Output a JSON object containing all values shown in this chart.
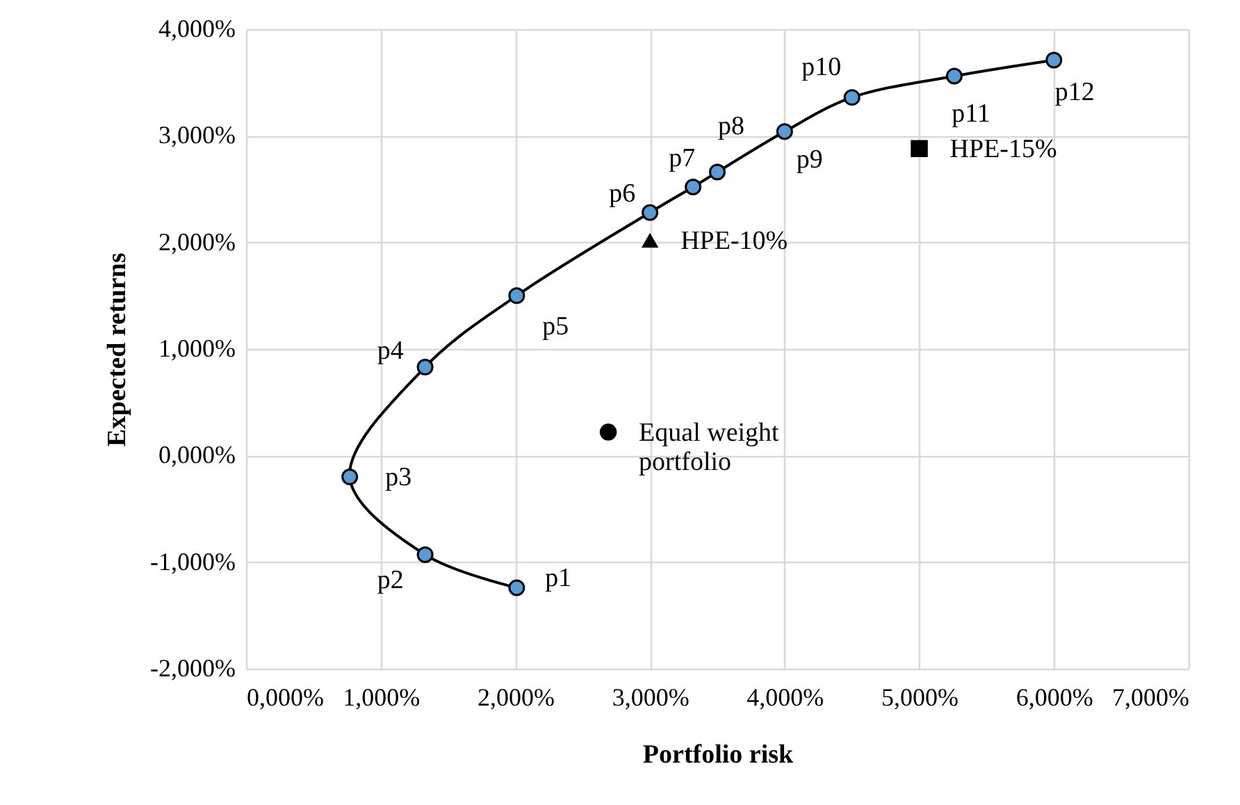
{
  "chart_data": {
    "type": "scatter",
    "xlabel": "Portfolio risk",
    "ylabel": "Expected returns",
    "xlim": [
      0,
      7
    ],
    "ylim": [
      -2,
      4
    ],
    "xticks": [
      {
        "value": 0,
        "label": "0,000%"
      },
      {
        "value": 1,
        "label": "1,000%"
      },
      {
        "value": 2,
        "label": "2,000%"
      },
      {
        "value": 3,
        "label": "3,000%"
      },
      {
        "value": 4,
        "label": "4,000%"
      },
      {
        "value": 5,
        "label": "5,000%"
      },
      {
        "value": 6,
        "label": "6,000%"
      },
      {
        "value": 7,
        "label": "7,000%"
      }
    ],
    "yticks": [
      {
        "value": -2,
        "label": "-2,000%"
      },
      {
        "value": -1,
        "label": "-1,000%"
      },
      {
        "value": 0,
        "label": "0,000%"
      },
      {
        "value": 1,
        "label": "1,000%"
      },
      {
        "value": 2,
        "label": "2,000%"
      },
      {
        "value": 3,
        "label": "3,000%"
      },
      {
        "value": 4,
        "label": "4,000%"
      }
    ],
    "grid": true,
    "series": [
      {
        "type": "line",
        "color": "#000000",
        "marker": "none",
        "x": [
          2.01,
          1.33,
          0.77,
          1.33,
          2.01,
          3.0,
          3.32,
          3.5,
          4.0,
          4.5,
          5.26,
          6.0
        ],
        "values": [
          -1.24,
          -0.93,
          -0.2,
          0.83,
          1.5,
          2.28,
          2.52,
          2.66,
          3.04,
          3.36,
          3.56,
          3.71
        ]
      },
      {
        "color": "#5b9bd5",
        "marker": "circle",
        "x": [
          2.01,
          1.33,
          0.77,
          1.33,
          2.01,
          3.0,
          3.32,
          3.5,
          4.0,
          4.5,
          5.26,
          6.0
        ],
        "values": [
          -1.24,
          -0.93,
          -0.2,
          0.83,
          1.5,
          2.28,
          2.52,
          2.66,
          3.04,
          3.36,
          3.56,
          3.71
        ]
      },
      {
        "name": "Equal weight\nportfolio",
        "color": "#000000",
        "marker": "circle",
        "x": [
          2.69
        ],
        "values": [
          0.22
        ]
      },
      {
        "name": "HPE-10%",
        "color": "#000000",
        "marker": "triangle",
        "x": [
          3.0
        ],
        "values": [
          2.02
        ]
      },
      {
        "name": "HPE-15%",
        "color": "#000000",
        "marker": "square",
        "x": [
          5.0
        ],
        "values": [
          2.88
        ]
      }
    ],
    "annotations": [
      {
        "text": "p1",
        "x": 2.01,
        "y": -1.24
      },
      {
        "text": "p2",
        "x": 1.33,
        "y": -0.93
      },
      {
        "text": "p3",
        "x": 0.77,
        "y": -0.2
      },
      {
        "text": "p4",
        "x": 1.33,
        "y": 0.83
      },
      {
        "text": "p5",
        "x": 2.01,
        "y": 1.5
      },
      {
        "text": "p6",
        "x": 3.0,
        "y": 2.28
      },
      {
        "text": "p7",
        "x": 3.32,
        "y": 2.52
      },
      {
        "text": "p8",
        "x": 3.5,
        "y": 2.66
      },
      {
        "text": "p9",
        "x": 4.0,
        "y": 3.04
      },
      {
        "text": "p10",
        "x": 4.5,
        "y": 3.36
      },
      {
        "text": "p11",
        "x": 5.26,
        "y": 3.56
      },
      {
        "text": "p12",
        "x": 6.0,
        "y": 3.71
      }
    ]
  }
}
